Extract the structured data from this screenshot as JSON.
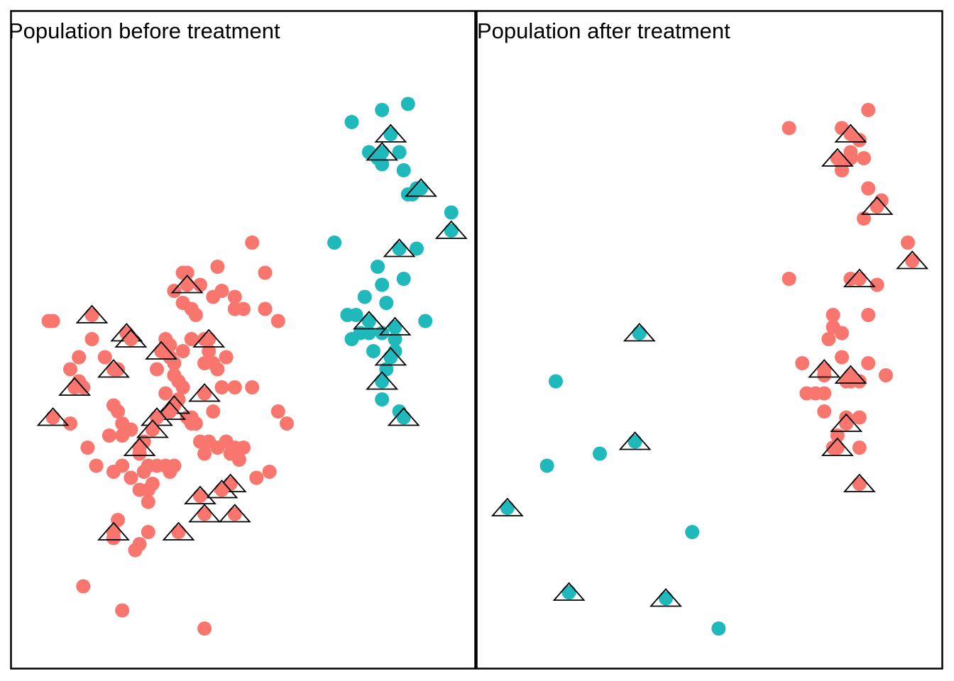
{
  "colors": {
    "red": "#F8766D",
    "teal": "#1FB9BC",
    "marker_outline": "#000000",
    "border": "#000000"
  },
  "chart_data": [
    {
      "type": "scatter",
      "title": "Population before treatment",
      "xlabel": "",
      "ylabel": "",
      "xlim": [
        0,
        100
      ],
      "ylim": [
        0,
        100
      ],
      "grid": false,
      "legend": "none",
      "series": [
        {
          "color": "#F8766D",
          "points": [
            [
              44,
              64
            ],
            [
              40,
              61
            ],
            [
              37,
              63
            ],
            [
              45,
              60
            ],
            [
              48,
              59
            ],
            [
              55,
              63
            ],
            [
              52,
              68
            ],
            [
              43,
              59
            ],
            [
              34,
              60
            ],
            [
              36,
              58
            ],
            [
              39,
              56
            ],
            [
              48,
              57
            ],
            [
              50,
              57
            ],
            [
              58,
              55
            ],
            [
              38,
              52
            ],
            [
              33,
              51
            ],
            [
              32,
              52
            ],
            [
              36,
              50
            ],
            [
              33,
              49
            ],
            [
              34,
              48
            ],
            [
              30,
              47
            ],
            [
              34,
              46
            ],
            [
              35,
              45
            ],
            [
              41,
              52
            ],
            [
              42,
              50
            ],
            [
              41,
              48
            ],
            [
              43,
              48
            ],
            [
              44,
              47
            ],
            [
              45,
              44
            ],
            [
              46,
              49
            ],
            [
              36,
              44
            ],
            [
              32,
              43
            ],
            [
              35,
              42
            ],
            [
              39,
              38
            ],
            [
              37,
              39
            ],
            [
              43,
              40
            ],
            [
              48,
              44
            ],
            [
              52,
              44
            ],
            [
              41,
              33
            ],
            [
              44,
              34
            ],
            [
              47,
              33
            ],
            [
              49,
              32
            ],
            [
              53,
              29
            ],
            [
              56,
              30
            ],
            [
              58,
              40
            ],
            [
              60,
              38
            ],
            [
              38,
              38
            ],
            [
              38,
              39
            ],
            [
              40,
              35
            ],
            [
              42,
              35
            ],
            [
              46,
              35
            ],
            [
              48,
              34
            ],
            [
              50,
              34
            ],
            [
              24,
              37
            ],
            [
              27,
              35
            ],
            [
              26,
              33
            ],
            [
              28,
              31
            ],
            [
              27,
              30
            ],
            [
              29,
              28
            ],
            [
              30,
              31
            ],
            [
              32,
              31
            ],
            [
              33,
              30
            ],
            [
              34,
              31
            ],
            [
              22,
              31
            ],
            [
              24,
              29
            ],
            [
              21,
              47
            ],
            [
              20,
              41
            ],
            [
              21,
              40
            ],
            [
              18,
              49
            ],
            [
              15,
              52
            ],
            [
              12,
              49
            ],
            [
              13,
              44
            ],
            [
              10,
              47
            ],
            [
              6,
              55
            ],
            [
              5,
              55
            ],
            [
              10,
              38
            ],
            [
              14,
              34
            ],
            [
              16,
              31
            ],
            [
              19,
              36
            ],
            [
              22,
              36
            ],
            [
              26,
              27
            ],
            [
              28,
              25
            ],
            [
              20,
              19
            ],
            [
              28,
              20
            ],
            [
              21,
              22
            ],
            [
              26,
              18
            ],
            [
              25,
              17
            ],
            [
              13,
              11
            ],
            [
              22,
              7
            ],
            [
              41,
              4
            ],
            [
              36,
              63
            ],
            [
              55,
              57
            ],
            [
              12,
              45
            ],
            [
              38,
              57
            ],
            [
              20,
              30
            ],
            [
              28,
              27
            ],
            [
              27,
              35
            ],
            [
              22,
              38
            ]
          ],
          "triangles": [
            [
              37,
              61
            ],
            [
              15,
              56
            ],
            [
              23,
              53
            ],
            [
              24,
              52
            ],
            [
              42,
              52
            ],
            [
              31,
              50
            ],
            [
              20,
              47
            ],
            [
              11,
              44
            ],
            [
              41,
              43
            ],
            [
              34,
              41
            ],
            [
              33,
              40
            ],
            [
              30,
              39
            ],
            [
              29,
              37
            ],
            [
              26,
              34
            ],
            [
              6,
              39
            ],
            [
              47,
              28
            ],
            [
              45,
              27
            ],
            [
              40,
              26
            ],
            [
              41,
              23
            ],
            [
              48,
              23
            ],
            [
              20,
              20
            ],
            [
              35,
              20
            ]
          ]
        },
        {
          "color": "#1FB9BC",
          "points": [
            [
              88,
              91
            ],
            [
              82,
              90
            ],
            [
              75,
              88
            ],
            [
              79,
              83
            ],
            [
              81,
              82
            ],
            [
              82,
              81
            ],
            [
              86,
              83
            ],
            [
              87,
              80
            ],
            [
              90,
              77
            ],
            [
              88,
              76
            ],
            [
              89,
              76
            ],
            [
              98,
              73
            ],
            [
              71,
              68
            ],
            [
              90,
              67
            ],
            [
              81,
              64
            ],
            [
              87,
              62
            ],
            [
              82,
              61
            ],
            [
              78,
              59
            ],
            [
              83,
              58
            ],
            [
              74,
              56
            ],
            [
              76,
              56
            ],
            [
              75,
              52
            ],
            [
              77,
              53
            ],
            [
              79,
              53
            ],
            [
              82,
              53
            ],
            [
              85,
              52
            ],
            [
              92,
              55
            ],
            [
              80,
              50
            ],
            [
              85,
              50
            ],
            [
              83,
              47
            ],
            [
              82,
              42
            ],
            [
              86,
              40
            ]
          ],
          "triangles": [
            [
              84,
              86
            ],
            [
              82,
              83
            ],
            [
              91,
              77
            ],
            [
              98,
              70
            ],
            [
              86,
              67
            ],
            [
              79,
              55
            ],
            [
              85,
              54
            ],
            [
              84,
              49
            ],
            [
              82,
              45
            ],
            [
              87,
              39
            ]
          ]
        }
      ]
    },
    {
      "type": "scatter",
      "title": "Population after treatment",
      "xlabel": "",
      "ylabel": "",
      "xlim": [
        0,
        100
      ],
      "ylim": [
        0,
        100
      ],
      "grid": false,
      "legend": "none",
      "series": [
        {
          "color": "#F8766D",
          "points": [
            [
              86,
              90
            ],
            [
              80,
              87
            ],
            [
              68,
              87
            ],
            [
              84,
              85
            ],
            [
              82,
              82
            ],
            [
              85,
              82
            ],
            [
              80,
              81
            ],
            [
              80,
              80
            ],
            [
              86,
              77
            ],
            [
              89,
              75
            ],
            [
              85,
              72
            ],
            [
              95,
              68
            ],
            [
              68,
              62
            ],
            [
              82,
              62
            ],
            [
              88,
              61
            ],
            [
              86,
              56
            ],
            [
              78,
              56
            ],
            [
              78,
              54
            ],
            [
              80,
              53
            ],
            [
              77,
              52
            ],
            [
              80,
              49
            ],
            [
              71,
              48
            ],
            [
              86,
              48
            ],
            [
              90,
              46
            ],
            [
              76,
              46
            ],
            [
              81,
              45
            ],
            [
              82,
              45
            ],
            [
              84,
              45
            ],
            [
              76,
              43
            ],
            [
              72,
              43
            ],
            [
              74,
              43
            ],
            [
              76,
              40
            ],
            [
              81,
              39
            ],
            [
              84,
              39
            ],
            [
              79,
              36
            ],
            [
              84,
              34
            ],
            [
              78,
              34
            ],
            [
              80,
              80
            ],
            [
              82,
              83
            ]
          ],
          "triangles": [
            [
              82,
              86
            ],
            [
              79,
              82
            ],
            [
              88,
              74
            ],
            [
              96,
              65
            ],
            [
              84,
              62
            ],
            [
              76,
              47
            ],
            [
              82,
              46
            ],
            [
              81,
              38
            ],
            [
              79,
              34
            ],
            [
              84,
              28
            ]
          ]
        },
        {
          "color": "#1FB9BC",
          "points": [
            [
              15,
              45
            ],
            [
              34,
              53
            ],
            [
              25,
              33
            ],
            [
              13,
              31
            ],
            [
              46,
              20
            ],
            [
              52,
              4
            ],
            [
              18,
              10
            ]
          ],
          "triangles": [
            [
              34,
              53
            ],
            [
              33,
              35
            ],
            [
              4,
              24
            ],
            [
              18,
              10
            ],
            [
              40,
              9
            ]
          ]
        }
      ]
    }
  ]
}
